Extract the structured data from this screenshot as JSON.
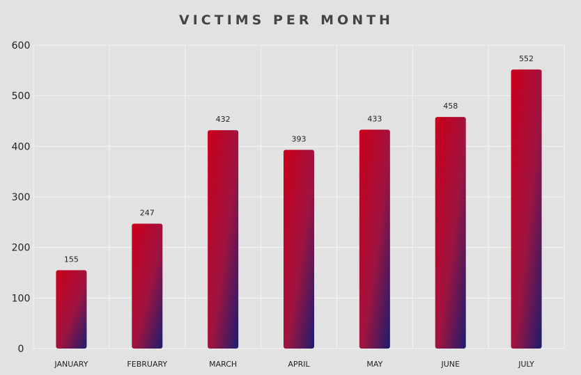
{
  "chart_data": {
    "type": "bar",
    "title": "VICTIMS PER MONTH",
    "xlabel": "",
    "ylabel": "",
    "categories": [
      "JANUARY",
      "FEBRUARY",
      "MARCH",
      "APRIL",
      "MAY",
      "JUNE",
      "JULY"
    ],
    "values": [
      155,
      247,
      432,
      393,
      433,
      458,
      552
    ],
    "data_labels": [
      "155",
      "247",
      "432",
      "393",
      "433",
      "458",
      "552"
    ],
    "ylim": [
      0,
      600
    ],
    "yticks": [
      0,
      100,
      200,
      300,
      400,
      500,
      600
    ],
    "grid": true,
    "legend": "none",
    "colors": {
      "bar_top": "#c8001e",
      "bar_bottom": "#1c1d6e",
      "background": "#e2e2e2",
      "grid": "#f4f4f4",
      "title": "#444444"
    }
  }
}
